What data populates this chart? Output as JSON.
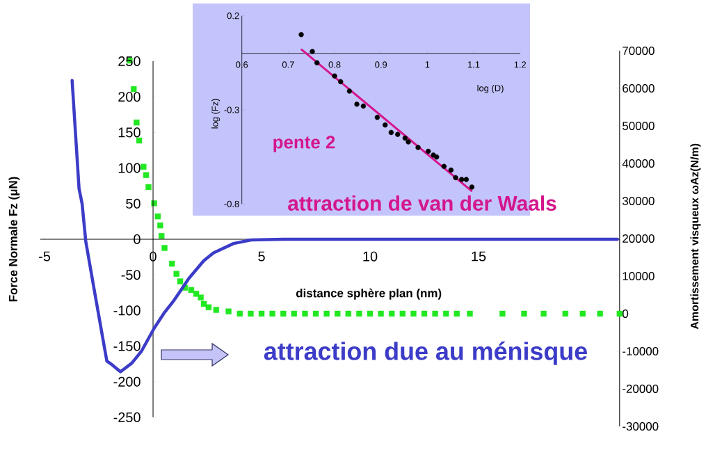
{
  "chart_data": [
    {
      "type": "line",
      "xlabel": "distance sphère plan (nm)",
      "ylabel": "Force Normale Fz (μN)",
      "y2label": "Amortissement visqueux ωAz(N/m)",
      "xlim": [
        -5.2,
        21.5
      ],
      "xticks": [
        -5,
        0,
        5,
        10,
        15
      ],
      "ylim": [
        -250,
        250
      ],
      "yticks": [
        -250,
        -200,
        -150,
        -100,
        -50,
        0,
        50,
        100,
        150,
        200,
        250
      ],
      "y2lim": [
        -30000,
        70000
      ],
      "y2ticks": [
        -30000,
        -20000,
        -10000,
        0,
        10000,
        20000,
        30000,
        40000,
        50000,
        60000,
        70000
      ],
      "annotations": [
        "attraction due au ménisque",
        "attraction de van der Waals"
      ],
      "series": [
        {
          "color": "#3c3cc8",
          "marker": "none",
          "x": [
            -3.73,
            -3.41,
            -3.27,
            -3.1,
            -2.7,
            -2.13,
            -1.9,
            -1.5,
            -0.98,
            -0.53,
            0.05,
            0.5,
            0.96,
            1.65,
            2.34,
            2.79,
            3.71,
            4.51,
            6,
            10,
            15,
            21.4
          ],
          "values": [
            223,
            71,
            50,
            -3,
            -73,
            -171,
            -176,
            -186,
            -174,
            -157,
            -125,
            -104,
            -86,
            -55,
            -30,
            -19,
            -6,
            -1,
            0,
            0,
            0,
            0
          ]
        },
        {
          "type": "scatter",
          "axis": "y2",
          "color": "#22e822",
          "marker": "square",
          "x": [
            -1.08,
            -0.89,
            -0.76,
            -0.64,
            -0.44,
            -0.32,
            -0.21,
            0.05,
            0.22,
            0.33,
            0.39,
            0.53,
            0.87,
            1.08,
            1.25,
            1.47,
            1.76,
            1.99,
            2.2,
            2.34,
            2.56,
            2.91,
            3.48,
            4,
            4.5,
            5,
            5.5,
            6,
            6.5,
            7,
            7.5,
            8,
            8.5,
            9,
            9.5,
            10,
            10.5,
            11,
            11.5,
            12,
            12.5,
            13,
            13.5,
            14,
            14.6,
            16.1,
            17.1,
            18,
            19,
            19.8,
            20.6,
            21.5
          ],
          "values": [
            67400,
            59800,
            50900,
            46100,
            39100,
            36900,
            33700,
            29400,
            25900,
            23500,
            20700,
            17500,
            13300,
            10600,
            8600,
            6900,
            6300,
            5300,
            4300,
            2600,
            1700,
            1000,
            600,
            0,
            0,
            0,
            0,
            0,
            0,
            0,
            0,
            0,
            0,
            0,
            0,
            0,
            0,
            0,
            0,
            0,
            0,
            0,
            0,
            0,
            0,
            0,
            0,
            0,
            0,
            0,
            0,
            0
          ]
        }
      ]
    },
    {
      "type": "scatter",
      "xlabel": "log (D)",
      "ylabel": "log (Fz)",
      "xlim": [
        0.6,
        1.2
      ],
      "xticks": [
        0.6,
        0.7,
        0.8,
        0.9,
        1,
        1.1,
        1.2
      ],
      "ylim": [
        -0.8,
        0.2
      ],
      "yticks": [
        -0.8,
        -0.3,
        0.2
      ],
      "annotations": [
        "pente 2"
      ],
      "series": [
        {
          "color": "#000000",
          "marker": "circle",
          "x": [
            0.728,
            0.752,
            0.762,
            0.8,
            0.813,
            0.832,
            0.848,
            0.862,
            0.892,
            0.909,
            0.922,
            0.936,
            0.952,
            0.959,
            0.98,
            1.002,
            1.013,
            1.02,
            1.036,
            1.051,
            1.061,
            1.074,
            1.084,
            1.096
          ],
          "values": [
            0.1,
            0.01,
            -0.05,
            -0.12,
            -0.15,
            -0.2,
            -0.27,
            -0.28,
            -0.34,
            -0.38,
            -0.42,
            -0.43,
            -0.45,
            -0.47,
            -0.5,
            -0.52,
            -0.54,
            -0.55,
            -0.6,
            -0.62,
            -0.66,
            -0.67,
            -0.67,
            -0.71
          ]
        },
        {
          "type": "line",
          "color": "#d4168c",
          "marker": "none",
          "x": [
            0.729,
            1.095
          ],
          "values": [
            0.02,
            -0.73
          ]
        }
      ]
    }
  ]
}
